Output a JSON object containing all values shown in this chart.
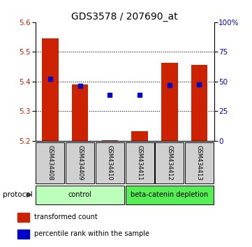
{
  "title": "GDS3578 / 207690_at",
  "samples": [
    "GSM434408",
    "GSM434409",
    "GSM434410",
    "GSM434411",
    "GSM434412",
    "GSM434413"
  ],
  "bar_values": [
    5.545,
    5.39,
    5.202,
    5.232,
    5.462,
    5.455
  ],
  "bar_base": 5.2,
  "blue_values": [
    5.41,
    5.385,
    5.355,
    5.355,
    5.387,
    5.39
  ],
  "ylim": [
    5.2,
    5.6
  ],
  "yticks_left": [
    5.2,
    5.3,
    5.4,
    5.5,
    5.6
  ],
  "ytick_right_labels": [
    "0",
    "25",
    "50",
    "75",
    "100%"
  ],
  "bar_color": "#cc2200",
  "blue_color": "#0000cc",
  "bg_color": "#ffffff",
  "sample_bg": "#d0d0d0",
  "groups": [
    {
      "label": "control",
      "start": 0,
      "end": 3,
      "color": "#bbffbb"
    },
    {
      "label": "beta-catenin depletion",
      "start": 3,
      "end": 6,
      "color": "#55ee55"
    }
  ],
  "protocol_label": "protocol",
  "legend_items": [
    {
      "color": "#cc2200",
      "label": "transformed count"
    },
    {
      "color": "#0000cc",
      "label": "percentile rank within the sample"
    }
  ],
  "title_fontsize": 10,
  "tick_fontsize": 7.5,
  "sample_fontsize": 6,
  "group_fontsize": 7,
  "legend_fontsize": 7,
  "protocol_fontsize": 7.5
}
